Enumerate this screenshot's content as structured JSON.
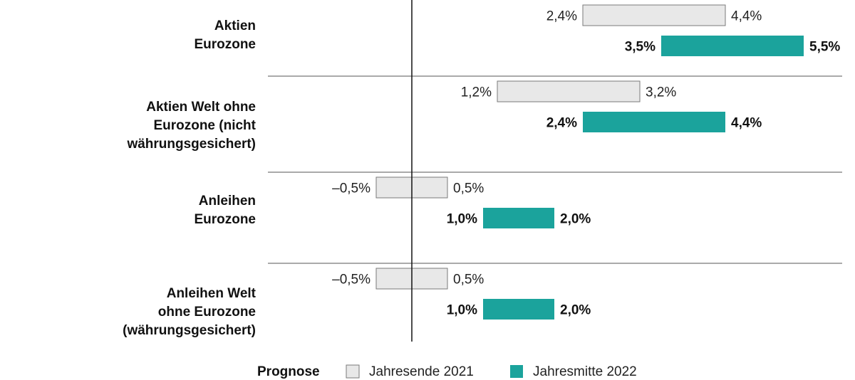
{
  "chart_data": {
    "type": "bar",
    "subtype": "floating-range",
    "orientation": "horizontal",
    "categories": [
      [
        "Aktien",
        "Eurozone"
      ],
      [
        "Aktien Welt ohne",
        "Eurozone (nicht",
        "währungsgesichert)"
      ],
      [
        "Anleihen",
        "Eurozone"
      ],
      [
        "Anleihen Welt",
        "ohne Eurozone",
        "(währungsgesichert)"
      ]
    ],
    "series": [
      {
        "name": "Jahresende 2021",
        "color": "#e8e8e8",
        "stroke": "#7a7a7a",
        "ranges": [
          [
            2.4,
            4.4
          ],
          [
            1.2,
            3.2
          ],
          [
            -0.5,
            0.5
          ],
          [
            -0.5,
            0.5
          ]
        ],
        "labels": [
          [
            "2,4%",
            "4,4%"
          ],
          [
            "1,2%",
            "3,2%"
          ],
          [
            "–0,5%",
            "0,5%"
          ],
          [
            "–0,5%",
            "0,5%"
          ]
        ]
      },
      {
        "name": "Jahresmitte 2022",
        "color": "#1ba39c",
        "ranges": [
          [
            3.5,
            5.5
          ],
          [
            2.4,
            4.4
          ],
          [
            1.0,
            2.0
          ],
          [
            1.0,
            2.0
          ]
        ],
        "labels": [
          [
            "3,5%",
            "5,5%"
          ],
          [
            "2,4%",
            "4,4%"
          ],
          [
            "1,0%",
            "2,0%"
          ],
          [
            "1,0%",
            "2,0%"
          ]
        ]
      }
    ],
    "zero_line": true,
    "legend": {
      "title": "Prognose",
      "position": "bottom"
    }
  }
}
